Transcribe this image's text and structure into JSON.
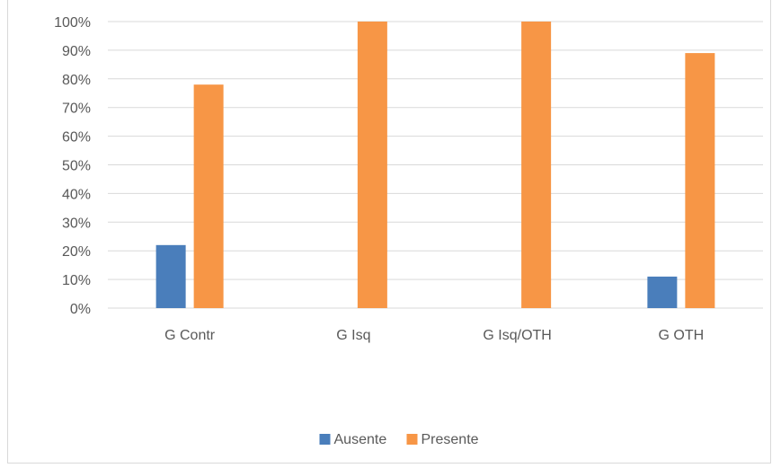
{
  "chart_data": {
    "type": "bar",
    "categories": [
      "G Contr",
      "G Isq",
      "G Isq/OTH",
      "G OTH"
    ],
    "series": [
      {
        "name": "Ausente",
        "values": [
          22,
          0,
          0,
          11
        ],
        "color": "#4a7ebb"
      },
      {
        "name": "Presente",
        "values": [
          78,
          100,
          100,
          89
        ],
        "color": "#f79646"
      }
    ],
    "ylim": [
      0,
      100
    ],
    "yticks": [
      "0%",
      "10%",
      "20%",
      "30%",
      "40%",
      "50%",
      "60%",
      "70%",
      "80%",
      "90%",
      "100%"
    ],
    "value_format": "percent",
    "grid": true,
    "legend_position": "bottom",
    "gridline_color": "#d9d9d9",
    "text_color": "#595959"
  }
}
